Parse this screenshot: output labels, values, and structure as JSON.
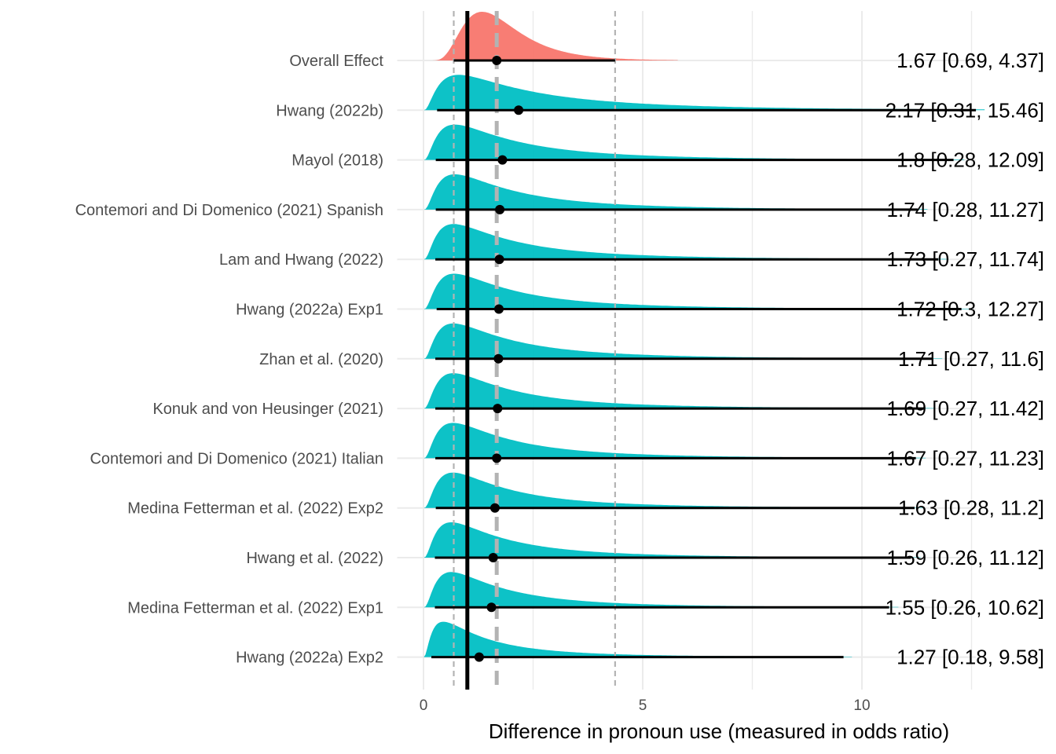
{
  "chart_data": {
    "type": "forest-density",
    "title": "",
    "xlabel": "Difference in pronoun use (measured in odds ratio)",
    "ylabel": "",
    "xlim": [
      -0.6,
      12.6
    ],
    "x_ticks": [
      0,
      5,
      10
    ],
    "grid": true,
    "legend": "none",
    "reference_lines": {
      "null_effect": 1,
      "overall_estimate": 1.67,
      "overall_lower": 0.69,
      "overall_upper": 4.37
    },
    "colors": {
      "overall": "#f8766d",
      "study": "#00bfc4",
      "grid": "#ebebeb",
      "reference": "#000000",
      "dashed": "#b3b3b3"
    },
    "rows": [
      {
        "label": "Overall Effect",
        "group": "overall",
        "estimate": 1.67,
        "lower": 0.69,
        "upper": 4.37,
        "estimate_label": "1.67 [0.69, 4.37]"
      },
      {
        "label": "Hwang (2022b)",
        "group": "study",
        "estimate": 2.17,
        "lower": 0.31,
        "upper": 15.46,
        "estimate_label": "2.17 [0.31, 15.46]"
      },
      {
        "label": "Mayol (2018)",
        "group": "study",
        "estimate": 1.8,
        "lower": 0.28,
        "upper": 12.09,
        "estimate_label": "1.8 [0.28, 12.09]"
      },
      {
        "label": "Contemori and Di Domenico (2021) Spanish",
        "group": "study",
        "estimate": 1.74,
        "lower": 0.28,
        "upper": 11.27,
        "estimate_label": "1.74 [0.28, 11.27]"
      },
      {
        "label": "Lam and Hwang (2022)",
        "group": "study",
        "estimate": 1.73,
        "lower": 0.27,
        "upper": 11.74,
        "estimate_label": "1.73 [0.27, 11.74]"
      },
      {
        "label": "Hwang (2022a) Exp1",
        "group": "study",
        "estimate": 1.72,
        "lower": 0.3,
        "upper": 12.27,
        "estimate_label": "1.72 [0.3, 12.27]"
      },
      {
        "label": "Zhan et al. (2020)",
        "group": "study",
        "estimate": 1.71,
        "lower": 0.27,
        "upper": 11.6,
        "estimate_label": "1.71 [0.27, 11.6]"
      },
      {
        "label": "Konuk and von Heusinger (2021)",
        "group": "study",
        "estimate": 1.69,
        "lower": 0.27,
        "upper": 11.42,
        "estimate_label": "1.69 [0.27, 11.42]"
      },
      {
        "label": "Contemori and Di Domenico (2021) Italian",
        "group": "study",
        "estimate": 1.67,
        "lower": 0.27,
        "upper": 11.23,
        "estimate_label": "1.67 [0.27, 11.23]"
      },
      {
        "label": "Medina Fetterman et al. (2022) Exp2",
        "group": "study",
        "estimate": 1.63,
        "lower": 0.28,
        "upper": 11.2,
        "estimate_label": "1.63 [0.28, 11.2]"
      },
      {
        "label": "Hwang et al. (2022)",
        "group": "study",
        "estimate": 1.59,
        "lower": 0.26,
        "upper": 11.12,
        "estimate_label": "1.59 [0.26, 11.12]"
      },
      {
        "label": "Medina Fetterman et al. (2022) Exp1",
        "group": "study",
        "estimate": 1.55,
        "lower": 0.26,
        "upper": 10.62,
        "estimate_label": "1.55 [0.26, 10.62]"
      },
      {
        "label": "Hwang (2022a) Exp2",
        "group": "study",
        "estimate": 1.27,
        "lower": 0.18,
        "upper": 9.58,
        "estimate_label": "1.27 [0.18, 9.58]"
      }
    ]
  }
}
